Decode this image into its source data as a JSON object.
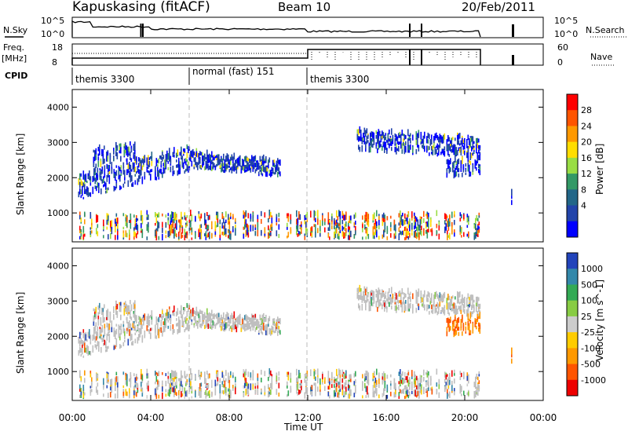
{
  "header": {
    "station": "Kapuskasing (fitACF)",
    "beam": "Beam 10",
    "date": "20/Feb/2011"
  },
  "status_panels": {
    "nsky_label": "N.Sky",
    "nsearch_label": "N.Search",
    "nsky_ticks": [
      "10^5",
      "10^0"
    ],
    "freq_label": "Freq.",
    "freq_unit": "[MHz]",
    "freq_ticks": [
      "18",
      "8"
    ],
    "nave_label": "Nave",
    "nave_ticks": [
      "60",
      "0"
    ],
    "cpid_label": "CPID",
    "cpid_segments": [
      {
        "label": "themis 3300",
        "start": 0,
        "end": 6
      },
      {
        "label": "normal (fast) 151",
        "start": 6,
        "end": 12
      },
      {
        "label": "themis 3300",
        "start": 12,
        "end": 24
      }
    ]
  },
  "chart_data": [
    {
      "type": "heatmap",
      "name": "power",
      "xlabel": "",
      "ylabel": "Slant Range [km]",
      "xlim": [
        0,
        24
      ],
      "ylim": [
        180,
        4500
      ],
      "yticks": [
        1000,
        2000,
        3000,
        4000
      ],
      "colorbar": {
        "label": "Power [dB]",
        "ticks": [
          "28",
          "24",
          "20",
          "16",
          "12",
          "8",
          "4"
        ],
        "colors": [
          "#ff0000",
          "#ff5500",
          "#ff9900",
          "#ffdd00",
          "#99dd44",
          "#339966",
          "#226688",
          "#2244aa",
          "#0000ff"
        ]
      }
    },
    {
      "type": "heatmap",
      "name": "velocity",
      "xlabel": "Time UT",
      "ylabel": "Slant Range [km]",
      "xlim": [
        0,
        24
      ],
      "ylim": [
        180,
        4500
      ],
      "yticks": [
        1000,
        2000,
        3000,
        4000
      ],
      "xticks": [
        "00:00",
        "04:00",
        "08:00",
        "12:00",
        "16:00",
        "20:00",
        "00:00"
      ],
      "colorbar": {
        "label": "Velocity [m s^-1]",
        "ticks": [
          "1000",
          "500",
          "100",
          "25",
          "-25",
          "-100",
          "-500",
          "-1000"
        ],
        "colors": [
          "#2244bb",
          "#3388aa",
          "#33aa55",
          "#88cc44",
          "#cccccc",
          "#ffcc00",
          "#ff9900",
          "#ff5500",
          "#ee0000"
        ]
      }
    }
  ],
  "colors": {
    "ground_scatter": "#bfbfbf",
    "dashed_lines": "#bbbbbb"
  }
}
